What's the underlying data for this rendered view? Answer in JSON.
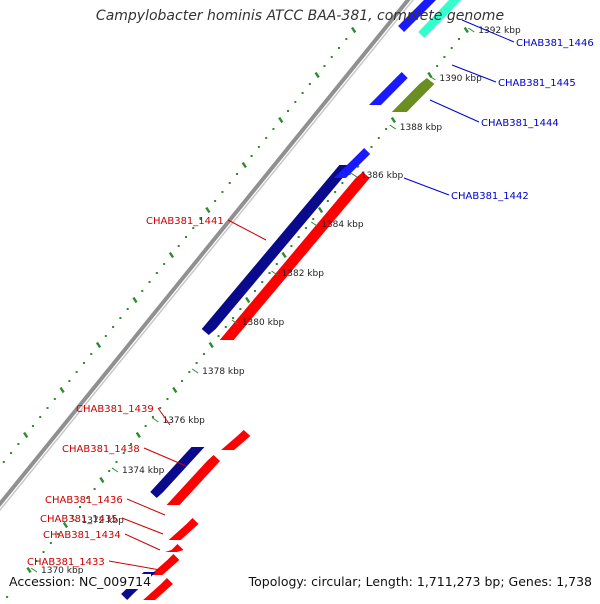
{
  "title": "Campylobacter hominis ATCC BAA-381, complete genome",
  "footer": {
    "accession": "Accession: NC_009714",
    "stats": "Topology: circular; Length: 1,711,273 bp; Genes: 1,738"
  },
  "colors": {
    "forward_cds": "#ff0000",
    "reverse_cds": "#0a0a8c",
    "blue_cds": "#1a1aff",
    "olive_cds": "#6b8e23",
    "teal_cds": "#33ffcc",
    "label_red": "#cc0000",
    "label_blue": "#0000cc",
    "tick_green": "#2e8b2e",
    "backbone": "#909090"
  },
  "ruler": {
    "ticks": [
      "1370 kbp",
      "1372 kbp",
      "1374 kbp",
      "1376 kbp",
      "1378 kbp",
      "1380 kbp",
      "1382 kbp",
      "1384 kbp",
      "1386 kbp",
      "1388 kbp",
      "1390 kbp",
      "1392 kbp"
    ]
  },
  "left_labels": [
    {
      "name": "CHAB381_1441"
    },
    {
      "name": "CHAB381_1439"
    },
    {
      "name": "CHAB381_1438"
    },
    {
      "name": "CHAB381_1436"
    },
    {
      "name": "CHAB381_1435"
    },
    {
      "name": "CHAB381_1434"
    },
    {
      "name": "CHAB381_1433"
    }
  ],
  "right_labels": [
    {
      "name": "CHAB381_1446"
    },
    {
      "name": "CHAB381_1445"
    },
    {
      "name": "CHAB381_1444"
    },
    {
      "name": "CHAB381_1442"
    }
  ]
}
